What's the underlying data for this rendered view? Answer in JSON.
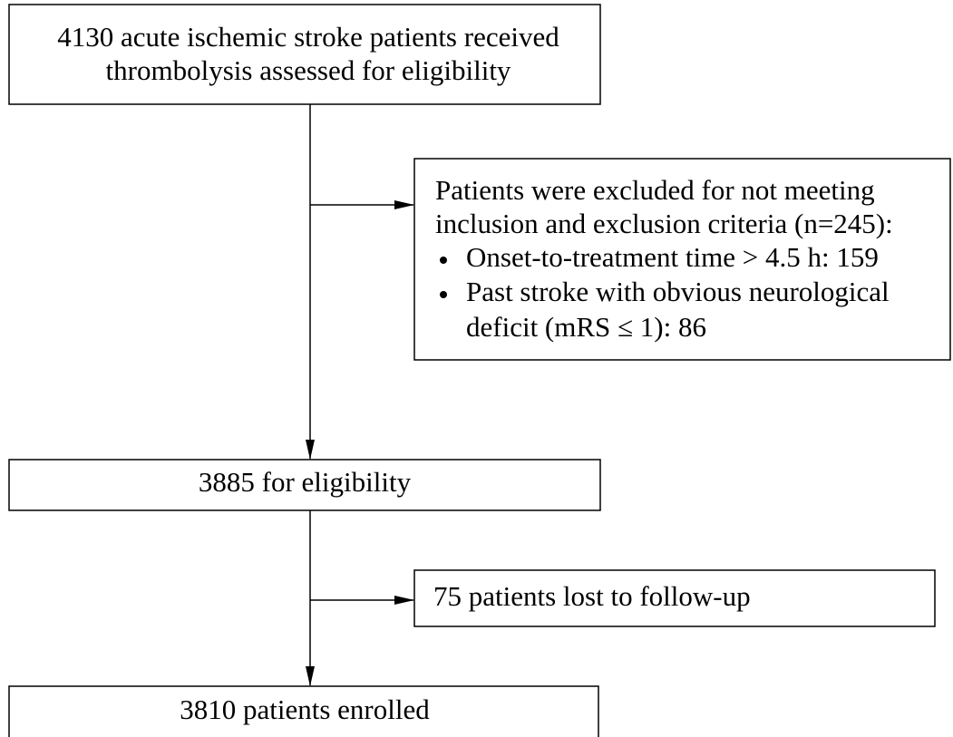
{
  "nodes": [
    {
      "lines": [
        "4130 acute ischemic stroke patients received",
        "thrombolysis assessed for eligibility"
      ]
    },
    {
      "lines": [
        "Patients were excluded for not meeting",
        "inclusion and exclusion criteria (n=245):"
      ],
      "bullets": [
        [
          "Onset-to-treatment time > 4.5 h: 159"
        ],
        [
          "Past stroke with obvious neurological",
          "deficit (mRS ≤ 1): 86"
        ]
      ]
    },
    {
      "lines": [
        "3885 for eligibility"
      ]
    },
    {
      "lines": [
        "75 patients lost to follow-up"
      ]
    },
    {
      "lines": [
        "3810 patients enrolled"
      ]
    }
  ]
}
